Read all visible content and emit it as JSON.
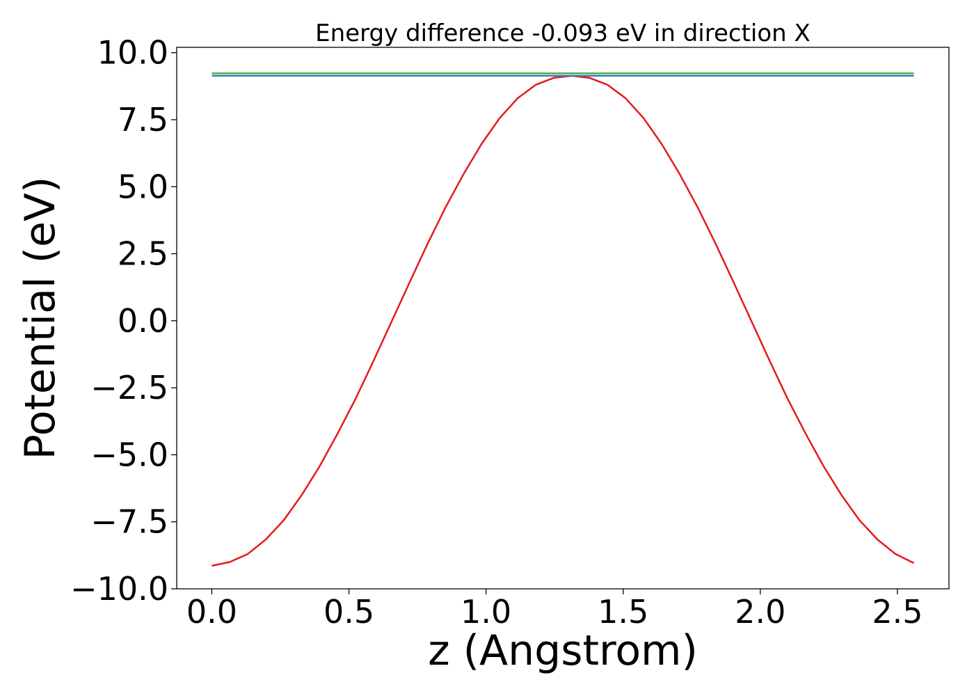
{
  "chart_data": {
    "type": "line",
    "title": "Energy difference -0.093 eV in direction X",
    "xlabel": "z (Angstrom)",
    "ylabel": "Potential (eV)",
    "xlim": [
      -0.128,
      2.688
    ],
    "ylim": [
      -10.0,
      10.2
    ],
    "grid": false,
    "legend": "none",
    "x_ticks": [
      {
        "value": 0.0,
        "label": "0.0"
      },
      {
        "value": 0.5,
        "label": "0.5"
      },
      {
        "value": 1.0,
        "label": "1.0"
      },
      {
        "value": 1.5,
        "label": "1.5"
      },
      {
        "value": 2.0,
        "label": "2.0"
      },
      {
        "value": 2.5,
        "label": "2.5"
      }
    ],
    "y_ticks": [
      {
        "value": -10.0,
        "label": "−10.0"
      },
      {
        "value": -7.5,
        "label": "−7.5"
      },
      {
        "value": -5.0,
        "label": "−5.0"
      },
      {
        "value": -2.5,
        "label": "−2.5"
      },
      {
        "value": 0.0,
        "label": "0.0"
      },
      {
        "value": 2.5,
        "label": "2.5"
      },
      {
        "value": 5.0,
        "label": "5.0"
      },
      {
        "value": 7.5,
        "label": "7.5"
      },
      {
        "value": 10.0,
        "label": "10.0"
      }
    ],
    "series": [
      {
        "color": "#e41a1c",
        "x": [
          0.0,
          0.0656,
          0.1312,
          0.1968,
          0.2624,
          0.328,
          0.3936,
          0.4592,
          0.5248,
          0.5904,
          0.656,
          0.7216,
          0.7872,
          0.8528,
          0.9184,
          0.984,
          1.0496,
          1.1152,
          1.1808,
          1.2464,
          1.312,
          1.3776,
          1.4432,
          1.5088,
          1.5744,
          1.64,
          1.7056,
          1.7712,
          1.8368,
          1.9024,
          1.968,
          2.0336,
          2.0992,
          2.1648,
          2.2304,
          2.296,
          2.3616,
          2.4272,
          2.4928,
          2.56
        ],
        "y": [
          -9.14,
          -9.0,
          -8.7,
          -8.16,
          -7.44,
          -6.5,
          -5.42,
          -4.2,
          -2.9,
          -1.48,
          -0.02,
          1.44,
          2.88,
          4.24,
          5.48,
          6.6,
          7.56,
          8.3,
          8.8,
          9.06,
          9.14,
          9.06,
          8.8,
          8.3,
          7.56,
          6.6,
          5.48,
          4.24,
          2.88,
          1.44,
          -0.02,
          -1.48,
          -2.9,
          -4.2,
          -5.42,
          -6.5,
          -7.44,
          -8.16,
          -8.7,
          -9.04
        ]
      },
      {
        "color": "#4daf4a",
        "x": [
          0.0,
          2.56
        ],
        "y": [
          9.23,
          9.23
        ]
      },
      {
        "color": "#377eb8",
        "x": [
          0.0,
          2.56
        ],
        "y": [
          9.14,
          9.14
        ]
      }
    ]
  }
}
